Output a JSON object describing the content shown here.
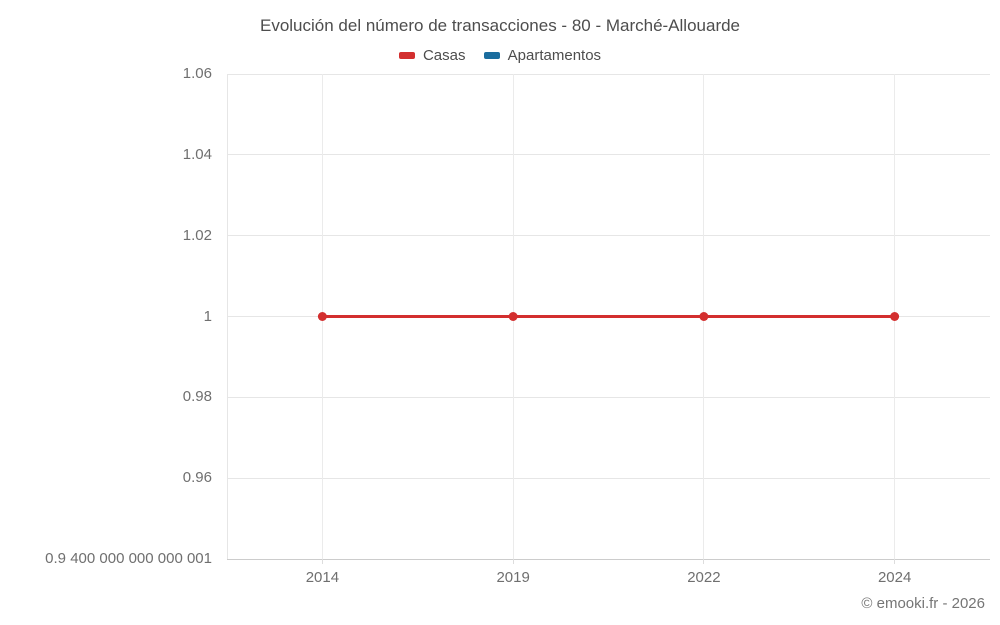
{
  "title": "Evolución del número de transacciones - 80 - Marché-Allouarde",
  "legend": {
    "items": [
      {
        "label": "Casas",
        "color": "#d32f2f"
      },
      {
        "label": "Apartamentos",
        "color": "#1a6d9e"
      }
    ]
  },
  "footer": {
    "copyright": "© emooki.fr - 2026"
  },
  "chart_data": {
    "type": "line",
    "title": "Evolución del número de transacciones - 80 - Marché-Allouarde",
    "categories": [
      "2014",
      "2019",
      "2022",
      "2024"
    ],
    "series": [
      {
        "name": "Casas",
        "color": "#d32f2f",
        "values": [
          1,
          1,
          1,
          1
        ]
      },
      {
        "name": "Apartamentos",
        "color": "#1a6d9e",
        "values": []
      }
    ],
    "xlabel": "",
    "ylabel": "",
    "ylim": [
      0.9400000000000001,
      1.06
    ],
    "yticks": [
      {
        "value": 1.06,
        "label": "1.06"
      },
      {
        "value": 1.04,
        "label": "1.04"
      },
      {
        "value": 1.02,
        "label": "1.02"
      },
      {
        "value": 1.0,
        "label": "1"
      },
      {
        "value": 0.98,
        "label": "0.98"
      },
      {
        "value": 0.96,
        "label": "0.96"
      },
      {
        "value": 0.9400000000000001,
        "label": "0.9 400 000 000 000 001"
      }
    ],
    "grid": true,
    "legend_position": "top",
    "marker_radius": 4.5,
    "line_width": 3,
    "colors": {
      "gridline": "#e6e6e6",
      "vgridline": "#ebebeb",
      "axis_line": "#cccccc",
      "tick_label": "#6f6f6f",
      "title_text": "#4d4d4d"
    }
  }
}
